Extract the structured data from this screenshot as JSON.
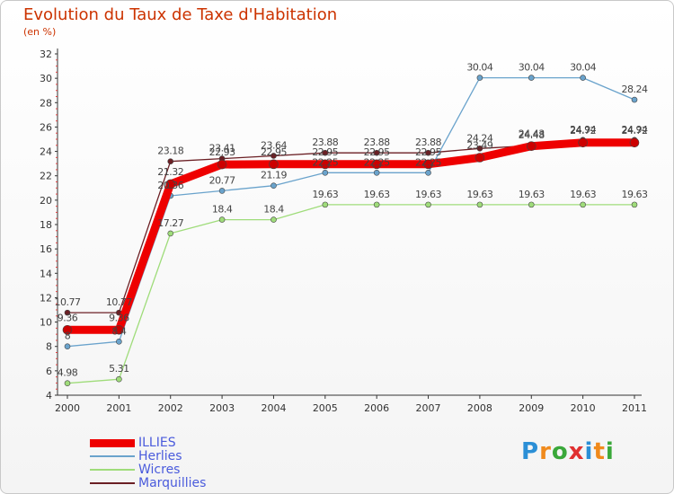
{
  "title": "Evolution du Taux de Taxe d'Habitation",
  "subtitle": "(en %)",
  "brand": {
    "letters": [
      "P",
      "r",
      "o",
      "x",
      "i",
      "t",
      "i"
    ],
    "colors": [
      "#2b8fd6",
      "#f08a1c",
      "#3aa83a",
      "#e03030",
      "#2b8fd6",
      "#f08a1c",
      "#3aa83a"
    ]
  },
  "chart_data": {
    "type": "line",
    "categories": [
      "2000",
      "2001",
      "2002",
      "2003",
      "2004",
      "2005",
      "2006",
      "2007",
      "2008",
      "2009",
      "2010",
      "2011"
    ],
    "ylim": [
      4,
      32
    ],
    "yticks": [
      "4",
      "6",
      "8",
      "10",
      "12",
      "14",
      "16",
      "18",
      "20",
      "22",
      "24",
      "26",
      "28",
      "30",
      "32"
    ],
    "grid": false,
    "legend_position": "bottom-left",
    "series": [
      {
        "name": "Marquillies",
        "color": "#6b1f24",
        "values": [
          10.77,
          10.77,
          23.18,
          23.41,
          23.64,
          23.88,
          23.88,
          23.88,
          24.24,
          24.48,
          24.94,
          24.94
        ],
        "labels": [
          "10.77",
          "10.77",
          "23.18",
          "23.41",
          "23.64",
          "23.88",
          "23.88",
          "23.88",
          "24.24",
          "24.48",
          "24.94",
          "24.94"
        ]
      },
      {
        "name": "Wicres",
        "color": "#9fdc7a",
        "values": [
          4.98,
          5.31,
          17.27,
          18.4,
          18.4,
          19.63,
          19.63,
          19.63,
          19.63,
          19.63,
          19.63,
          19.63
        ],
        "labels": [
          "4.98",
          "5.31",
          "17.27",
          "18.4",
          "18.4",
          "19.63",
          "19.63",
          "19.63",
          "19.63",
          "19.63",
          "19.63",
          "19.63"
        ]
      },
      {
        "name": "Herlies",
        "color": "#6aa3cc",
        "values": [
          8,
          8.4,
          20.36,
          20.77,
          21.19,
          22.25,
          22.25,
          22.25,
          30.04,
          30.04,
          30.04,
          28.24
        ],
        "labels": [
          "8",
          "8.4",
          "20.36",
          "20.77",
          "21.19",
          "22.25",
          "22.25",
          "22.25",
          "30.04",
          "30.04",
          "30.04",
          "28.24"
        ]
      },
      {
        "name": "ILLIES",
        "color": "#ee0000",
        "values": [
          9.36,
          9.36,
          21.32,
          22.93,
          22.95,
          22.95,
          22.95,
          22.95,
          23.49,
          24.43,
          24.72,
          24.72
        ],
        "labels": [
          "9.36",
          "9.36",
          "21.32",
          "22.93",
          "22.95",
          "22.95",
          "22.95",
          "22.95",
          "23.49",
          "24.43",
          "24.72",
          "24.72"
        ]
      }
    ]
  }
}
